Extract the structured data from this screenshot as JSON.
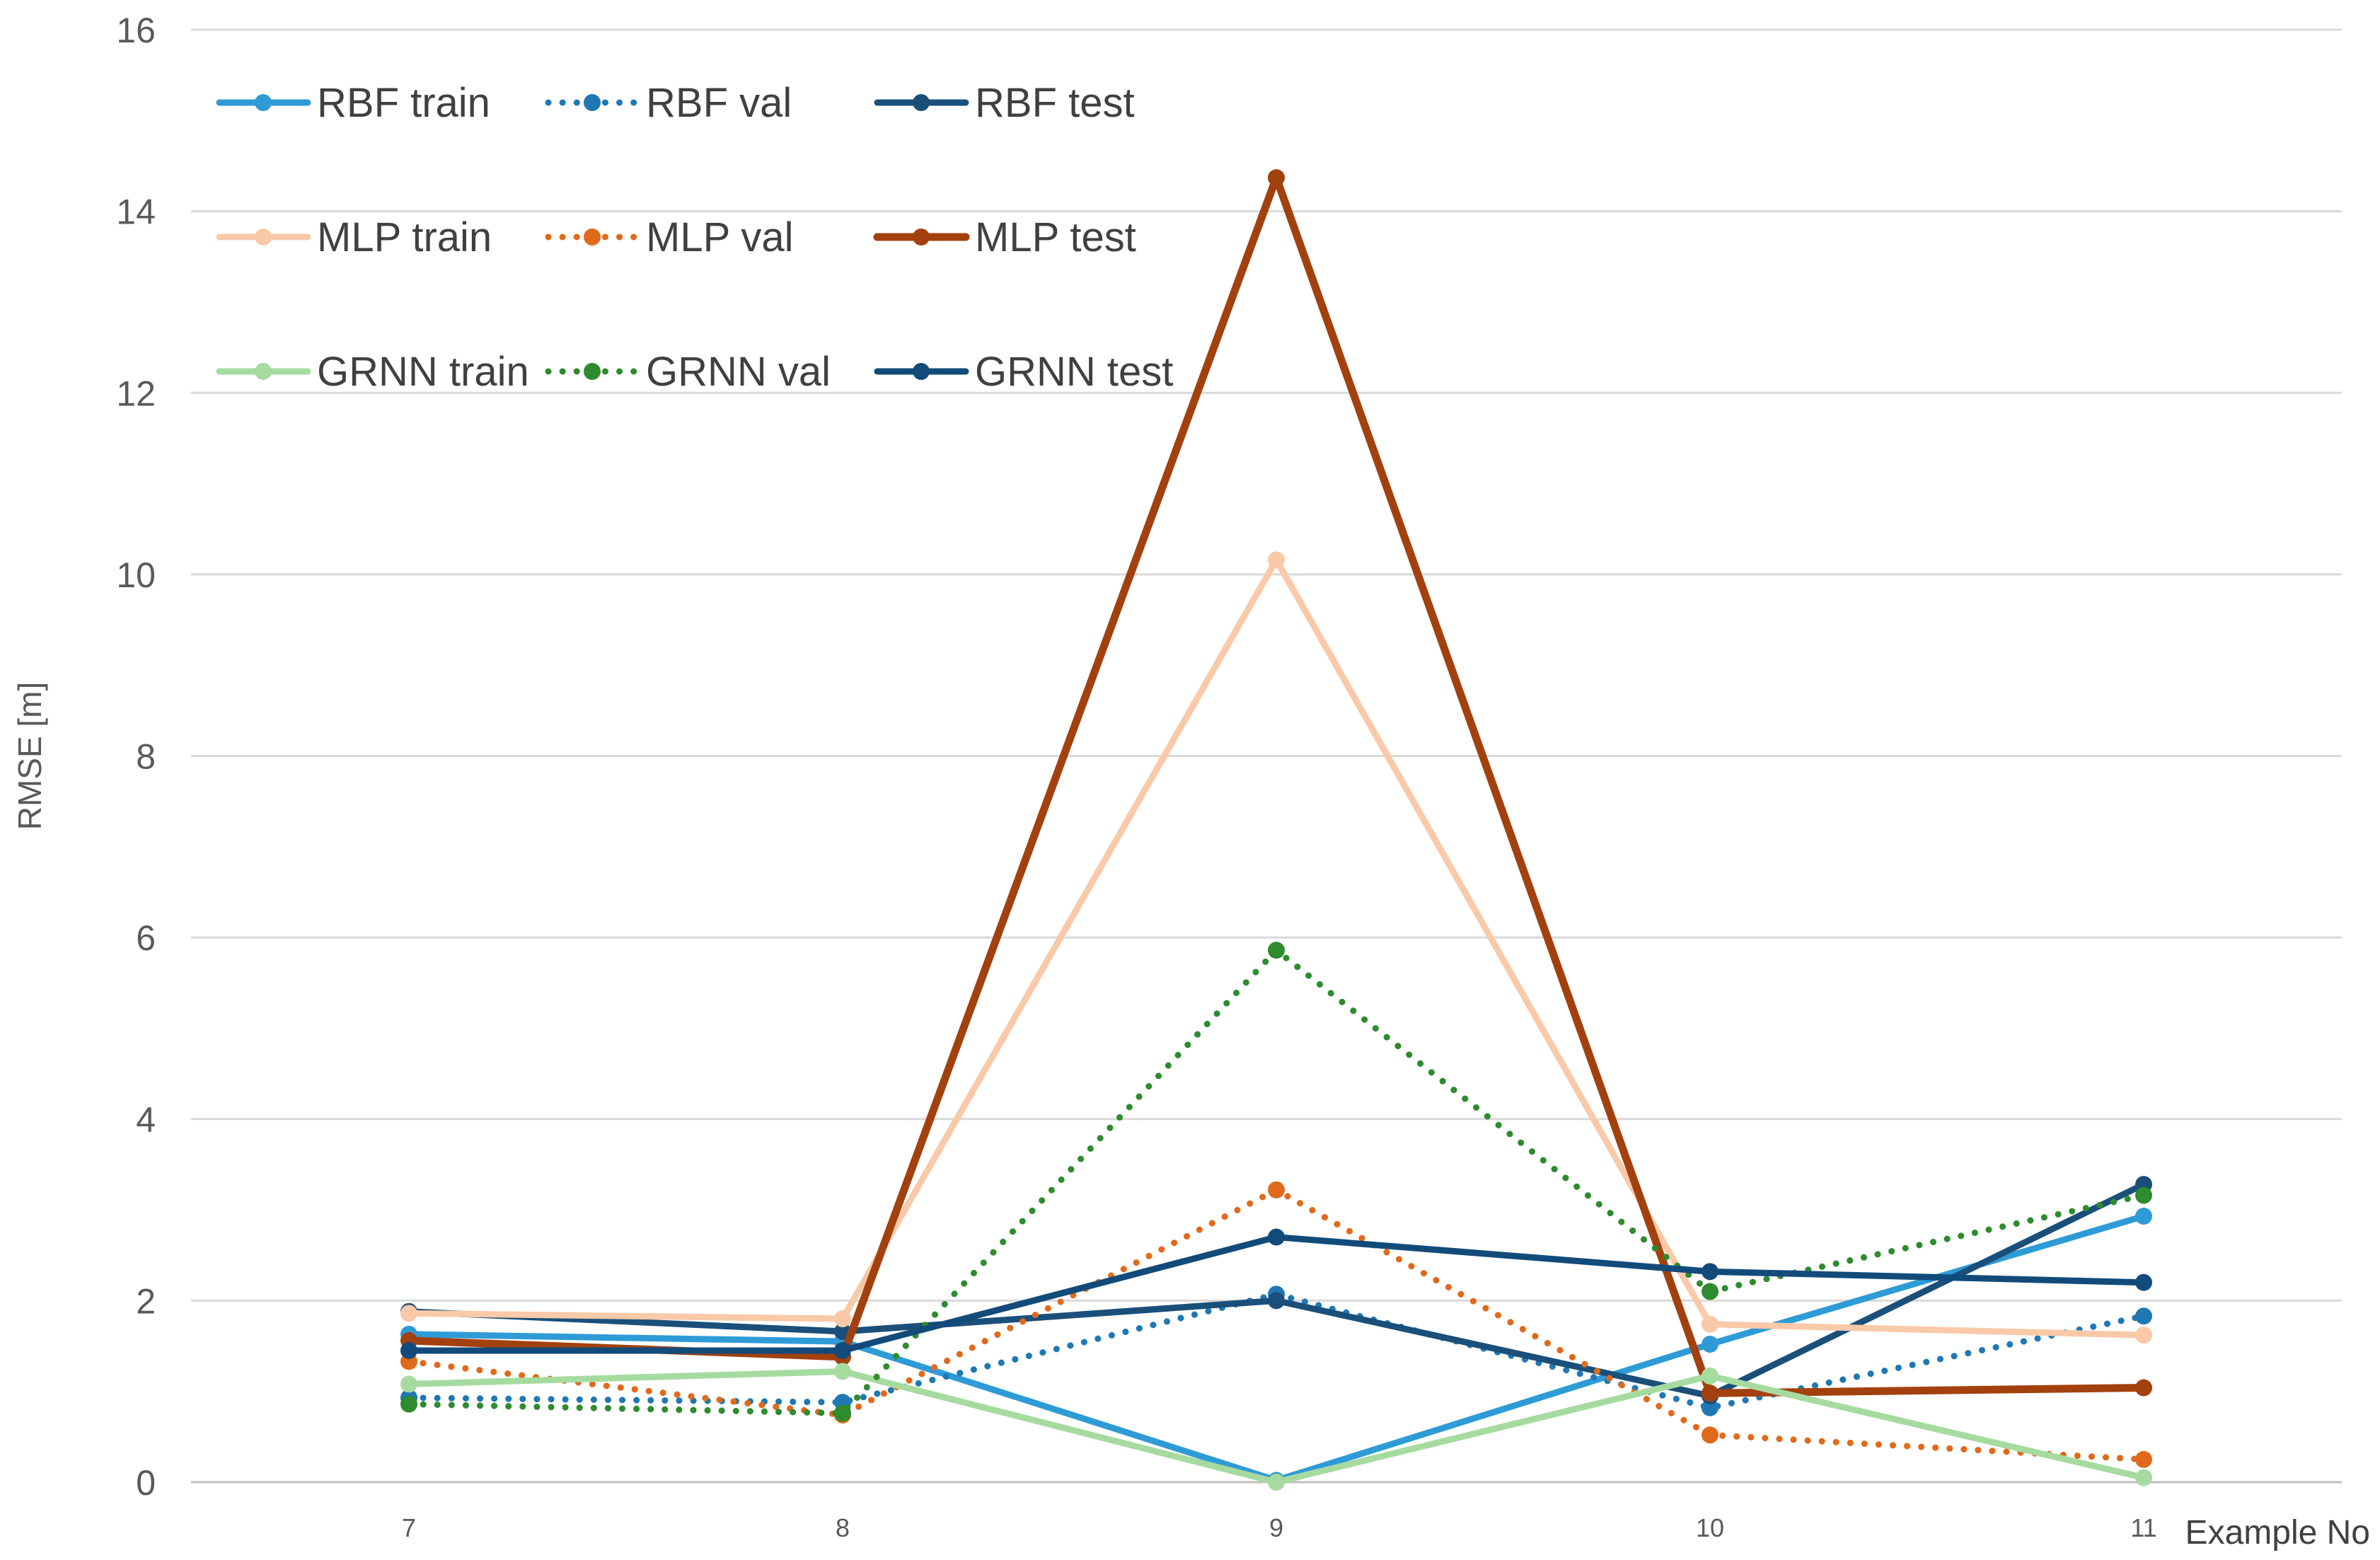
{
  "chart_data": {
    "type": "line",
    "title": "",
    "xlabel": "Example No",
    "ylabel": "RMSE [m]",
    "categories": [
      "7",
      "8",
      "9",
      "10",
      "11"
    ],
    "ylim": [
      0,
      16
    ],
    "yticks": [
      "0",
      "2",
      "4",
      "6",
      "8",
      "10",
      "12",
      "14",
      "16"
    ],
    "grid": "horizontal",
    "legend_position": "top-left",
    "series": [
      {
        "name": "RBF train",
        "color": "#2E9BD6",
        "style": "solid",
        "line": "medium",
        "values": [
          1.63,
          1.55,
          0.02,
          1.52,
          2.93
        ]
      },
      {
        "name": "RBF val",
        "color": "#1F78B4",
        "style": "dotted",
        "line": "medium",
        "values": [
          0.93,
          0.88,
          2.07,
          0.82,
          1.83
        ]
      },
      {
        "name": "RBF test",
        "color": "#1A4F7A",
        "style": "solid",
        "line": "medium",
        "values": [
          1.88,
          1.66,
          2.0,
          0.95,
          3.28
        ]
      },
      {
        "name": "MLP train",
        "color": "#F9C9A8",
        "style": "solid",
        "line": "medium",
        "values": [
          1.86,
          1.8,
          10.16,
          1.74,
          1.62
        ]
      },
      {
        "name": "MLP val",
        "color": "#E06A1B",
        "style": "dotted",
        "line": "medium",
        "values": [
          1.33,
          0.74,
          3.22,
          0.52,
          0.25
        ]
      },
      {
        "name": "MLP test",
        "color": "#A3410E",
        "style": "solid",
        "line": "thick",
        "values": [
          1.56,
          1.38,
          14.37,
          0.98,
          1.04
        ]
      },
      {
        "name": "GRNN train",
        "color": "#A6DBA0",
        "style": "solid",
        "line": "medium",
        "values": [
          1.08,
          1.22,
          0.0,
          1.17,
          0.05
        ]
      },
      {
        "name": "GRNN val",
        "color": "#2E8B2E",
        "style": "dotted",
        "line": "medium",
        "values": [
          0.86,
          0.76,
          5.86,
          2.1,
          3.16
        ]
      },
      {
        "name": "GRNN test",
        "color": "#124B7A",
        "style": "solid",
        "line": "medium",
        "values": [
          1.45,
          1.45,
          2.7,
          2.32,
          2.2
        ]
      }
    ]
  }
}
